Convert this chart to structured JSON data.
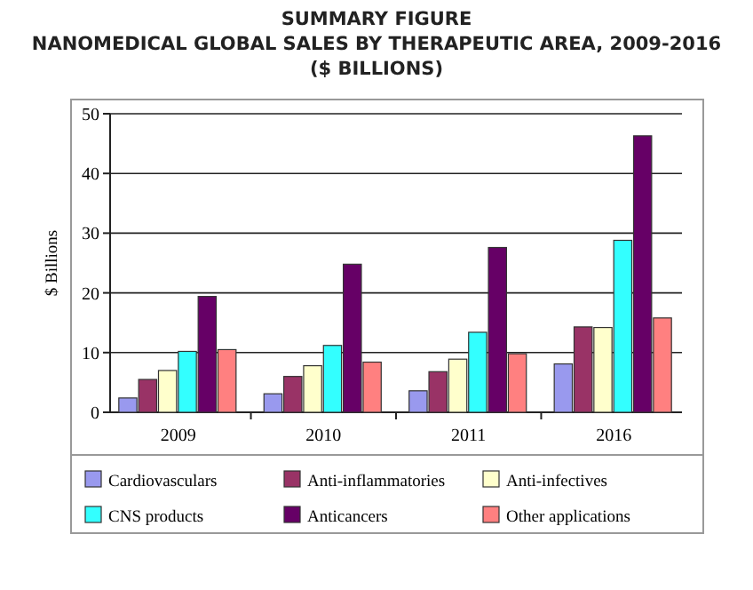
{
  "chart_data": {
    "type": "bar",
    "title": "SUMMARY FIGURE",
    "subtitle": "NANOMEDICAL GLOBAL SALES BY THERAPEUTIC AREA, 2009-2016\n($ BILLIONS)",
    "ylabel": "$ Billions",
    "categories": [
      "2009",
      "2010",
      "2011",
      "2016"
    ],
    "series": [
      {
        "name": "Cardiovasculars",
        "color": "#9999ee",
        "values": [
          2.4,
          3.1,
          3.6,
          8.1
        ]
      },
      {
        "name": "Anti-inflammatories",
        "color": "#993366",
        "values": [
          5.5,
          6,
          6.8,
          14.3
        ]
      },
      {
        "name": "Anti-infectives",
        "color": "#ffffcc",
        "values": [
          7,
          7.8,
          8.9,
          14.2
        ]
      },
      {
        "name": "CNS products",
        "color": "#33ffff",
        "values": [
          10.2,
          11.2,
          13.4,
          28.8
        ]
      },
      {
        "name": "Anticancers",
        "color": "#660066",
        "values": [
          19.4,
          24.8,
          27.6,
          46.3
        ]
      },
      {
        "name": "Other applications",
        "color": "#ff8080",
        "values": [
          10.5,
          8.4,
          9.8,
          15.8
        ]
      }
    ],
    "ylim": [
      0,
      50
    ],
    "yticks": [
      0,
      10,
      20,
      30,
      40,
      50
    ],
    "grid": "y",
    "legend": "bottom"
  }
}
